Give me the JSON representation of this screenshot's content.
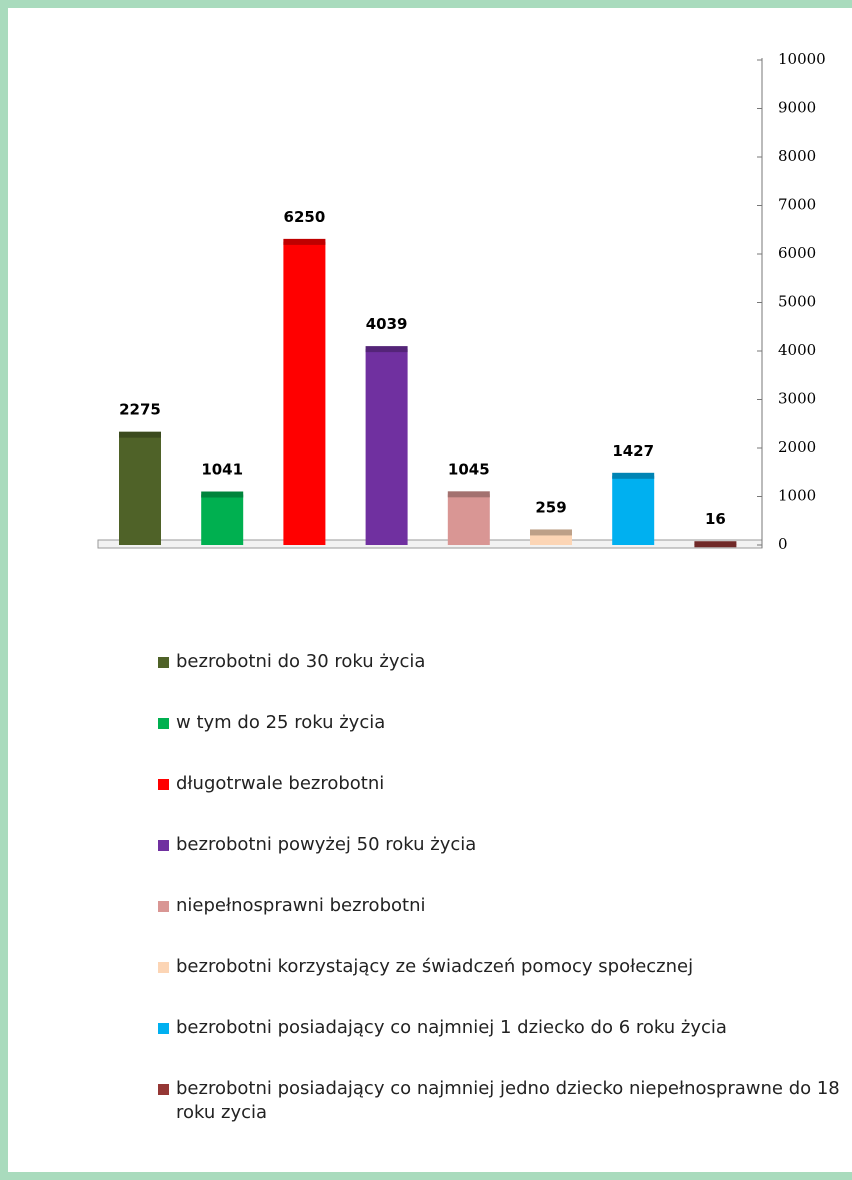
{
  "chart_data": {
    "type": "bar",
    "categories": [
      null
    ],
    "series": [
      {
        "name": "bezrobotni do 30 roku życia",
        "color": "#4f6228",
        "values": [
          2275
        ]
      },
      {
        "name": "w tym do 25 roku życia",
        "color": "#00b050",
        "values": [
          1041
        ]
      },
      {
        "name": "długotrwale bezrobotni",
        "color": "#ff0000",
        "values": [
          6250
        ]
      },
      {
        "name": "bezrobotni powyżej 50 roku życia",
        "color": "#7030a0",
        "values": [
          4039
        ]
      },
      {
        "name": "niepełnosprawni bezrobotni",
        "color": "#d99694",
        "values": [
          1045
        ]
      },
      {
        "name": "bezrobotni korzystający ze świadczeń pomocy społecznej",
        "color": "#fcd5b5",
        "values": [
          259
        ]
      },
      {
        "name": "bezrobotni posiadający co najmniej 1 dziecko do 6 roku życia",
        "color": "#00b0f0",
        "values": [
          1427
        ]
      },
      {
        "name": "bezrobotni posiadający co najmniej jedno dziecko niepełnosprawne do 18 roku zycia",
        "color": "#953735",
        "values": [
          16
        ]
      }
    ],
    "ylim": [
      0,
      10000
    ],
    "yticks": [
      0,
      1000,
      2000,
      3000,
      4000,
      5000,
      6000,
      7000,
      8000,
      9000,
      10000
    ],
    "y_axis_position": "right",
    "legend": "bottom",
    "grid": false
  }
}
